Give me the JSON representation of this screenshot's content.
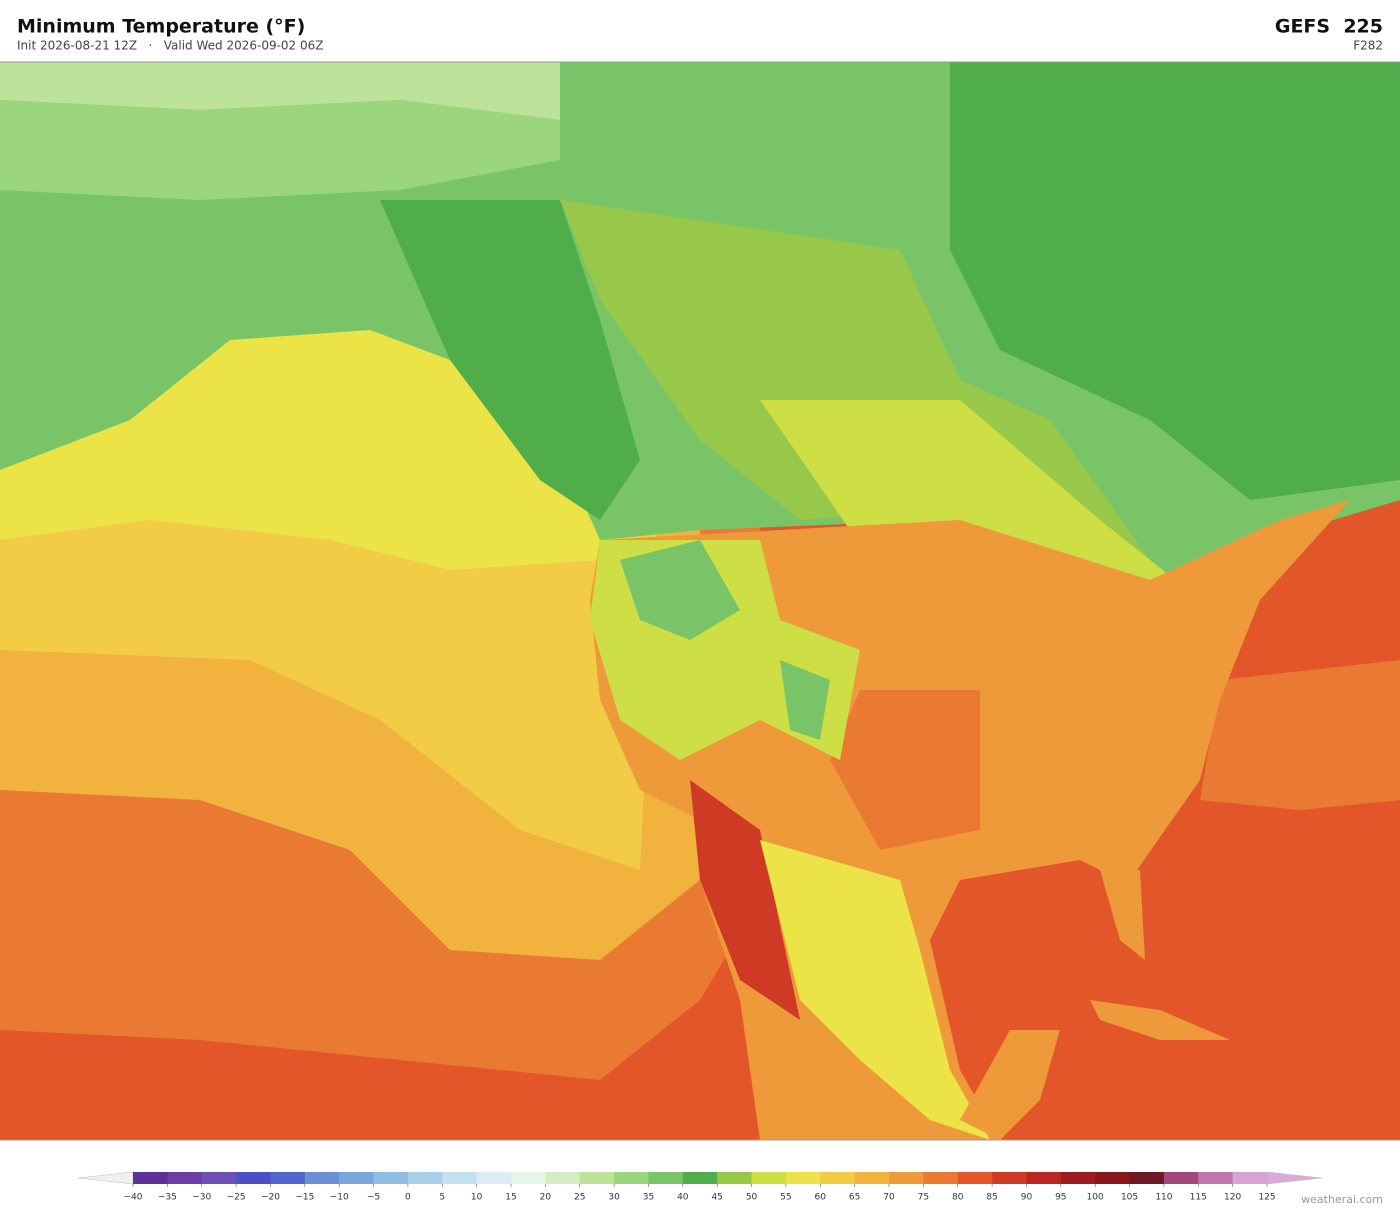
{
  "header": {
    "title": "Minimum Temperature  (°F)",
    "subtitle": "Init 2026-08-21 12Z   ·   Valid Wed 2026-09-02 06Z",
    "model": "GEFS  225",
    "forecast_hour": "F282"
  },
  "colorbar": {
    "ticks": [
      {
        "value": -40,
        "label": "−40"
      },
      {
        "value": -35,
        "label": "−35"
      },
      {
        "value": -30,
        "label": "−30"
      },
      {
        "value": -25,
        "label": "−25"
      },
      {
        "value": -20,
        "label": "−20"
      },
      {
        "value": -15,
        "label": "−15"
      },
      {
        "value": -10,
        "label": "−10"
      },
      {
        "value": -5,
        "label": "−5"
      },
      0,
      5,
      10,
      15,
      20,
      25,
      30,
      35,
      40,
      45,
      50,
      55,
      60,
      65,
      70,
      75,
      80,
      85,
      90,
      95,
      100,
      105,
      110,
      115,
      120,
      125
    ],
    "colors": [
      "#5e2f97",
      "#6a3ea3",
      "#6f4fb5",
      "#4b4fc4",
      "#4e66cc",
      "#6a8fd4",
      "#7ba6d9",
      "#91bde3",
      "#a9d2ea",
      "#c3e2ef",
      "#daedf2",
      "#e6f4ea",
      "#d4ecc3",
      "#bde39a",
      "#9bd67f",
      "#79c466",
      "#4fae4a",
      "#98c84a",
      "#cede45",
      "#ece346",
      "#f3cc45",
      "#f2b23e",
      "#ee9a3a",
      "#ea7a32",
      "#e2562a",
      "#cf3a25",
      "#b82722",
      "#9e1c20",
      "#86151c",
      "#6e1a26",
      "#a14a7a",
      "#c276b0",
      "#d9a3d1"
    ],
    "under_color": "#f0f0f0",
    "over_color": "#dba9d8"
  },
  "watermark": "weatherai.com"
}
